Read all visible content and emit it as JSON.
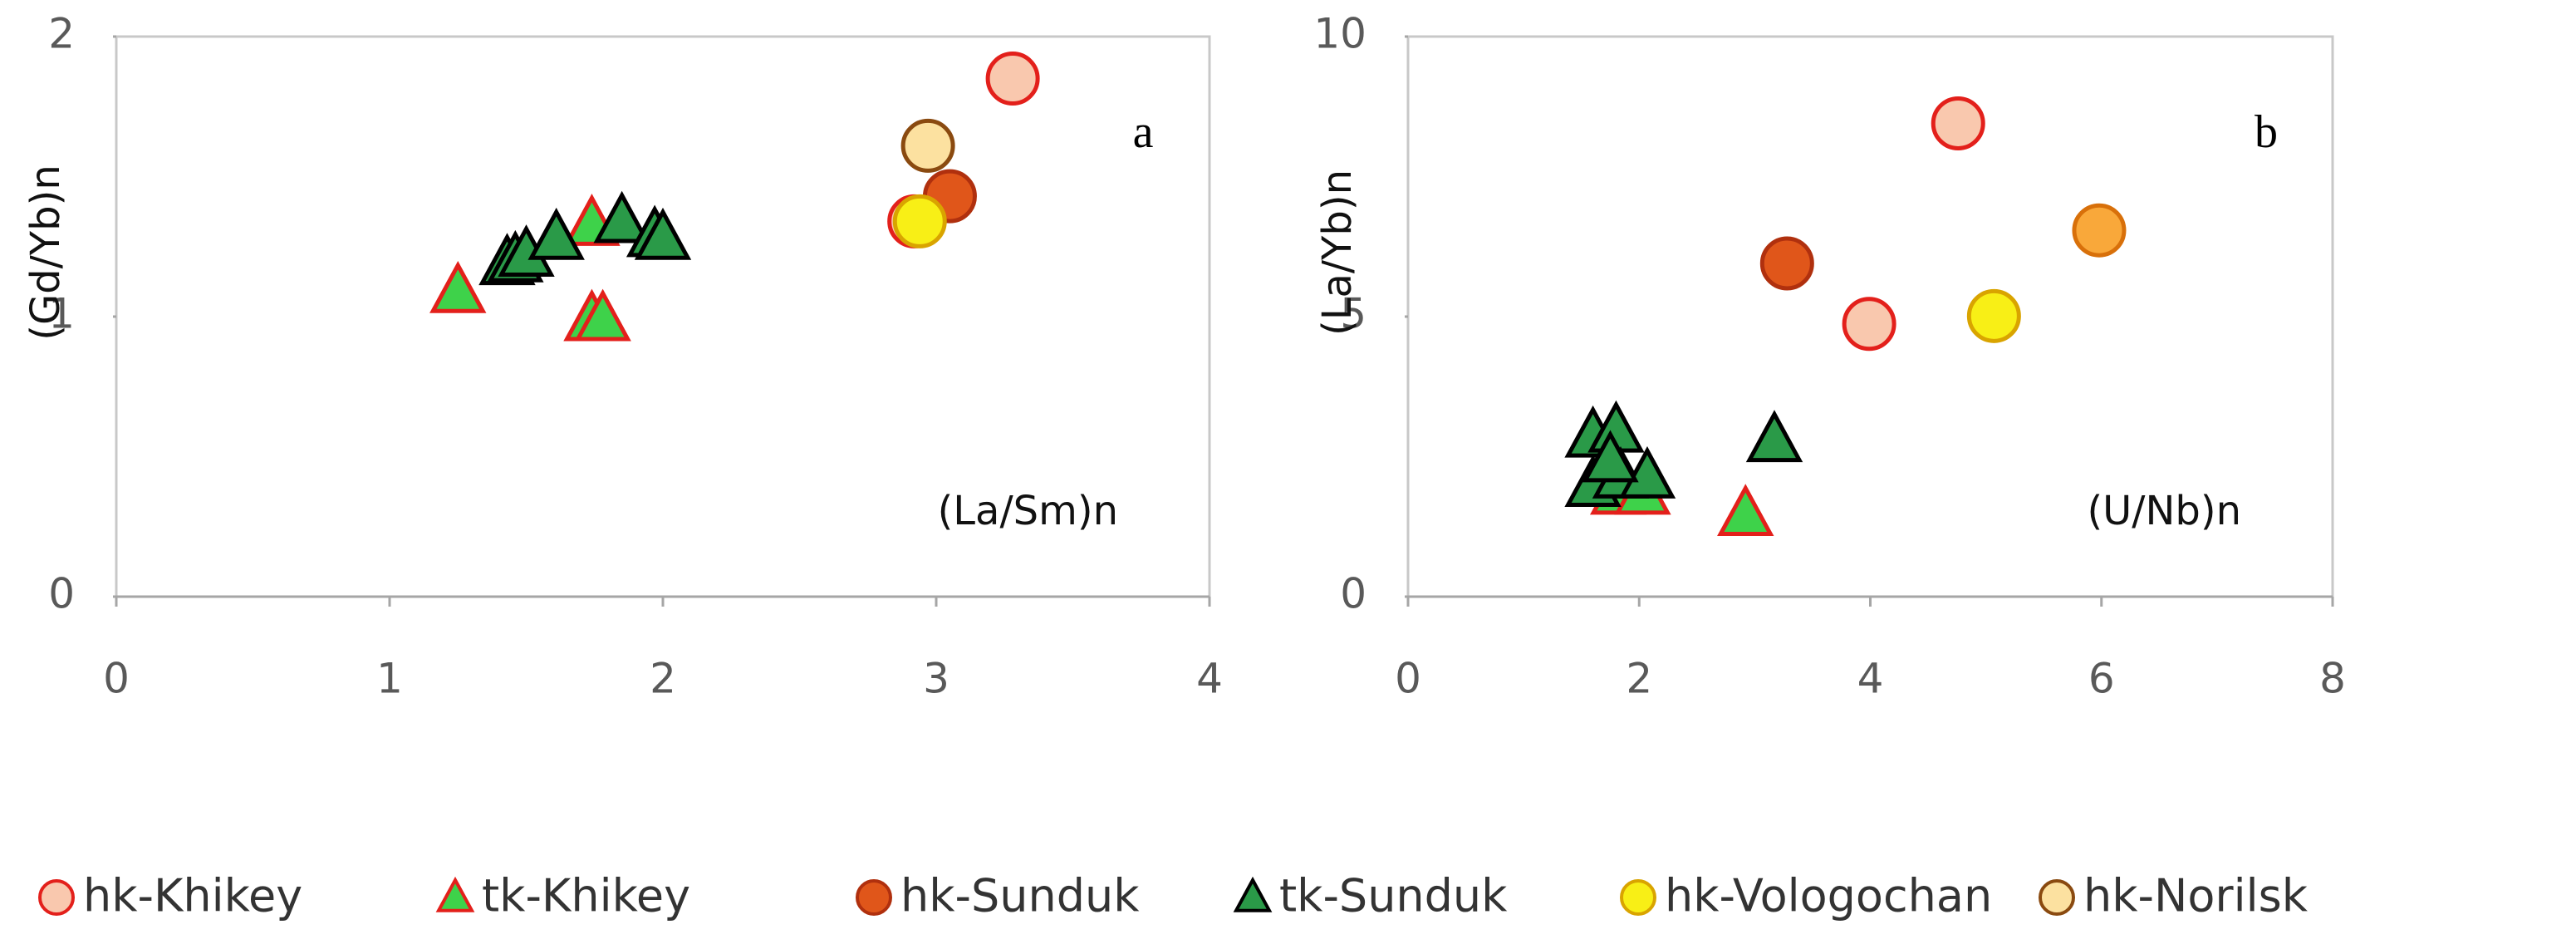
{
  "chart_data": [
    {
      "type": "scatter",
      "panel_label": "a",
      "x_label": "(La/Sm)n",
      "y_label": "(Gd/Yb)n",
      "xlim": [
        0,
        4
      ],
      "xticks": [
        0,
        1,
        2,
        3,
        4
      ],
      "ylim": [
        0,
        2
      ],
      "yticks": [
        0,
        1,
        2
      ],
      "series": [
        {
          "name": "hk-Khikey",
          "marker": "circle",
          "color": "#f9c8ae",
          "edge": "#e3201b",
          "x": [
            3.28,
            2.92
          ],
          "values": [
            1.85,
            1.34
          ]
        },
        {
          "name": "tk-Khikey",
          "marker": "triangle",
          "color": "#3ed24a",
          "edge": "#e3201b",
          "x": [
            1.25,
            1.74,
            1.74,
            1.78
          ],
          "values": [
            1.09,
            1.33,
            0.99,
            0.99
          ]
        },
        {
          "name": "hk-Sunduk",
          "marker": "circle",
          "color": "#e0561a",
          "edge": "#b0300e",
          "x": [
            3.05
          ],
          "values": [
            1.43
          ]
        },
        {
          "name": "tk-Sunduk",
          "marker": "triangle",
          "color": "#2a9a48",
          "edge": "#000000",
          "x": [
            1.43,
            1.46,
            1.5,
            1.61,
            1.85,
            1.97,
            2.0
          ],
          "values": [
            1.19,
            1.2,
            1.22,
            1.28,
            1.34,
            1.29,
            1.28
          ]
        },
        {
          "name": "hk-Vologochan",
          "marker": "circle",
          "color": "#f8ef16",
          "edge": "#d9a400",
          "x": [
            2.94
          ],
          "values": [
            1.34
          ]
        },
        {
          "name": "hk-Norilsk",
          "marker": "circle",
          "color": "#fce1a0",
          "edge": "#8a4a10",
          "x": [
            2.97
          ],
          "values": [
            1.61
          ]
        }
      ]
    },
    {
      "type": "scatter",
      "panel_label": "b",
      "x_label": "(U/Nb)n",
      "y_label": "(La/Yb)n",
      "xlim": [
        0,
        8
      ],
      "xticks": [
        0,
        2,
        4,
        6,
        8
      ],
      "ylim": [
        0,
        10
      ],
      "yticks": [
        0,
        5,
        10
      ],
      "series": [
        {
          "marker": "circle",
          "color": "#f9c8ae",
          "edge": "#e3201b",
          "x": [
            4.76,
            3.99
          ],
          "values": [
            8.45,
            4.87
          ]
        },
        {
          "marker": "triangle",
          "color": "#3ed24a",
          "edge": "#e3201b",
          "x": [
            2.92,
            1.82,
            2.03
          ],
          "values": [
            1.47,
            1.85,
            1.85
          ]
        },
        {
          "marker": "circle",
          "color": "#e0561a",
          "edge": "#b0300e",
          "x": [
            3.28
          ],
          "values": [
            5.95
          ]
        },
        {
          "marker": "triangle",
          "color": "#2a9a48",
          "edge": "#000000",
          "x": [
            1.6,
            1.8,
            1.6,
            1.84,
            2.07,
            3.17,
            1.75
          ],
          "values": [
            2.87,
            2.96,
            1.99,
            2.14,
            2.14,
            2.79,
            2.43
          ]
        },
        {
          "marker": "circle",
          "color": "#f8ef16",
          "edge": "#d9a400",
          "x": [
            5.07
          ],
          "values": [
            5.01
          ]
        },
        {
          "marker": "circle",
          "color": "#f9a83a",
          "edge": "#d8700a",
          "x": [
            5.98
          ],
          "values": [
            6.54
          ]
        }
      ]
    }
  ]
}
